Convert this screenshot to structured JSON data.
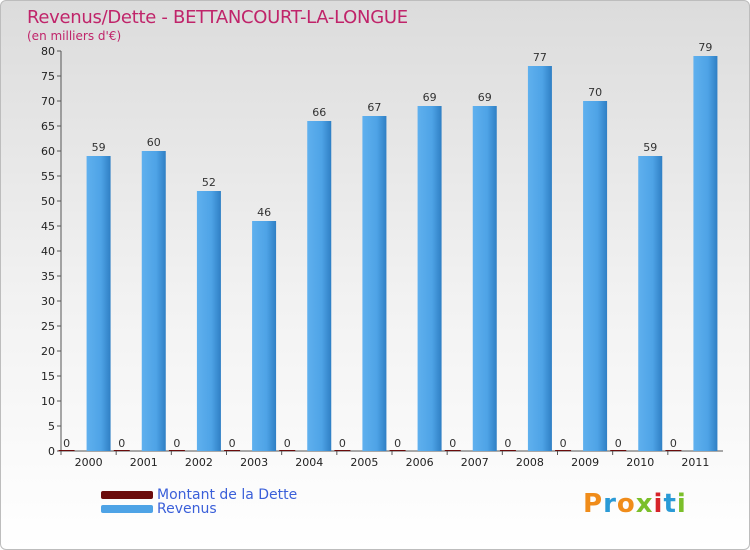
{
  "title": "Revenus/Dette - BETTANCOURT-LA-LONGUE",
  "subtitle": "(en milliers d'€)",
  "chart_data": {
    "type": "bar",
    "categories": [
      "2000",
      "2001",
      "2002",
      "2003",
      "2004",
      "2005",
      "2006",
      "2007",
      "2008",
      "2009",
      "2010",
      "2011"
    ],
    "series": [
      {
        "name": "Montant de la Dette",
        "color": "#6b0b0b",
        "values": [
          0,
          0,
          0,
          0,
          0,
          0,
          0,
          0,
          0,
          0,
          0,
          0
        ]
      },
      {
        "name": "Revenus",
        "color": "#4ea3e6",
        "values": [
          59,
          60,
          52,
          46,
          66,
          67,
          69,
          69,
          77,
          70,
          59,
          79
        ]
      }
    ],
    "ylim": [
      0,
      80
    ],
    "yticks": [
      0,
      5,
      10,
      15,
      20,
      25,
      30,
      35,
      40,
      45,
      50,
      55,
      60,
      65,
      70,
      75,
      80
    ],
    "grid": false,
    "legend_position": "bottom-left"
  },
  "logo": {
    "text": "Proxiti",
    "colors": [
      "#f08c1a",
      "#2a9ad6",
      "#f08c1a",
      "#7bbf2a",
      "#d6232a",
      "#2a9ad6",
      "#7bbf2a"
    ]
  }
}
